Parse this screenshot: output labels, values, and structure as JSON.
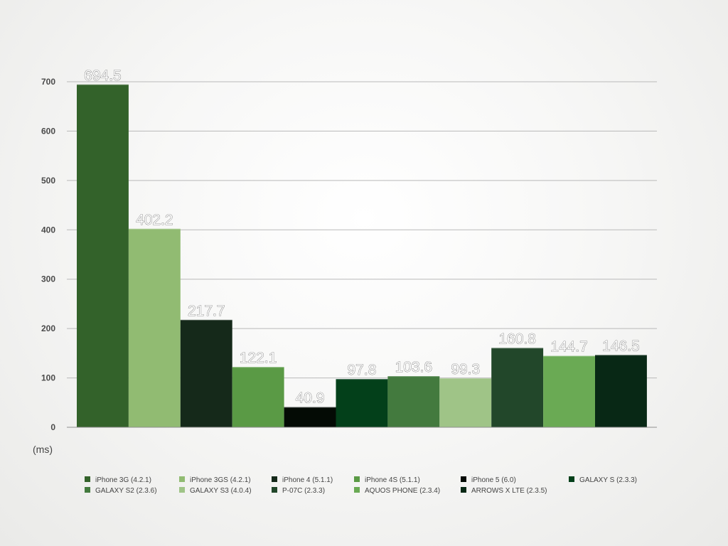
{
  "chart_data": {
    "type": "bar",
    "title": "",
    "xlabel": "",
    "ylabel": "(ms)",
    "ylim": [
      0,
      700
    ],
    "yticks": [
      0,
      100,
      200,
      300,
      400,
      500,
      600,
      700
    ],
    "grid": true,
    "legend_position": "bottom",
    "categories": [
      "iPhone 3G (4.2.1)",
      "iPhone 3GS (4.2.1)",
      "iPhone 4 (5.1.1)",
      "iPhone 4S (5.1.1)",
      "iPhone 5 (6.0)",
      "GALAXY S (2.3.3)",
      "GALAXY S2 (2.3.6)",
      "GALAXY S3 (4.0.4)",
      "P-07C (2.3.3)",
      "AQUOS PHONE (2.3.4)",
      "ARROWS X LTE (2.3.5)"
    ],
    "values": [
      694.5,
      402.2,
      217.7,
      122.1,
      40.9,
      97.8,
      103.6,
      99.3,
      160.8,
      144.7,
      146.5
    ],
    "value_labels": [
      "694.5",
      "402.2",
      "217.7",
      "122.1",
      "40.9",
      "97.8",
      "103.6",
      "99.3",
      "160.8",
      "144.7",
      "146.5"
    ],
    "colors": [
      "#33622a",
      "#91bb72",
      "#15291a",
      "#5a9a45",
      "#040b05",
      "#03401a",
      "#437a3e",
      "#9fc487",
      "#22472a",
      "#6aaa54",
      "#082815"
    ]
  }
}
